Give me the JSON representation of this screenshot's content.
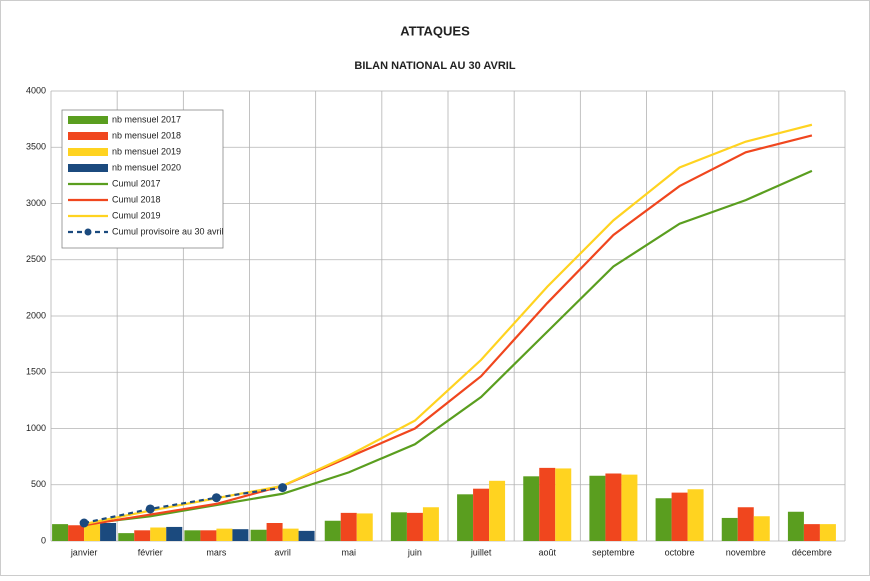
{
  "chart_data": {
    "type": "combo",
    "title": "ATTAQUES",
    "subtitle": "BILAN NATIONAL AU 30 AVRIL",
    "categories": [
      "janvier",
      "février",
      "mars",
      "avril",
      "mai",
      "juin",
      "juillet",
      "août",
      "septembre",
      "octobre",
      "novembre",
      "décembre"
    ],
    "ylim": [
      0,
      4000
    ],
    "yticks": [
      0,
      500,
      1000,
      1500,
      2000,
      2500,
      3000,
      3500,
      4000
    ],
    "grid": true,
    "legend": "top-left",
    "series": [
      {
        "name": "nb mensuel 2017",
        "type": "bar",
        "color": "#5a9e1f",
        "values": [
          150,
          70,
          95,
          100,
          180,
          255,
          415,
          575,
          580,
          380,
          205,
          260
        ]
      },
      {
        "name": "nb mensuel 2018",
        "type": "bar",
        "color": "#f0461e",
        "values": [
          140,
          95,
          95,
          160,
          250,
          250,
          465,
          650,
          600,
          430,
          300,
          150
        ]
      },
      {
        "name": "nb mensuel 2019",
        "type": "bar",
        "color": "#ffd320",
        "values": [
          150,
          120,
          110,
          110,
          245,
          300,
          535,
          645,
          590,
          460,
          220,
          150
        ]
      },
      {
        "name": "nb mensuel 2020",
        "type": "bar",
        "color": "#1b4a7e",
        "values": [
          160,
          125,
          105,
          90,
          null,
          null,
          null,
          null,
          null,
          null,
          null,
          null
        ]
      },
      {
        "name": "Cumul 2017",
        "type": "line",
        "color": "#5a9e1f",
        "values": [
          150,
          220,
          320,
          420,
          610,
          860,
          1280,
          1860,
          2440,
          2820,
          3030,
          3290
        ]
      },
      {
        "name": "Cumul 2018",
        "type": "line",
        "color": "#f0461e",
        "values": [
          140,
          235,
          330,
          490,
          745,
          1000,
          1465,
          2115,
          2720,
          3155,
          3455,
          3605
        ]
      },
      {
        "name": "Cumul 2019",
        "type": "line",
        "color": "#ffd320",
        "values": [
          150,
          270,
          380,
          490,
          760,
          1070,
          1610,
          2260,
          2850,
          3320,
          3550,
          3700
        ]
      },
      {
        "name": "Cumul provisoire au 30 avril",
        "type": "line",
        "color": "#1b4a7e",
        "line_style": "dashed",
        "marker": "circle",
        "values": [
          160,
          285,
          385,
          475,
          null,
          null,
          null,
          null,
          null,
          null,
          null,
          null
        ]
      }
    ]
  }
}
